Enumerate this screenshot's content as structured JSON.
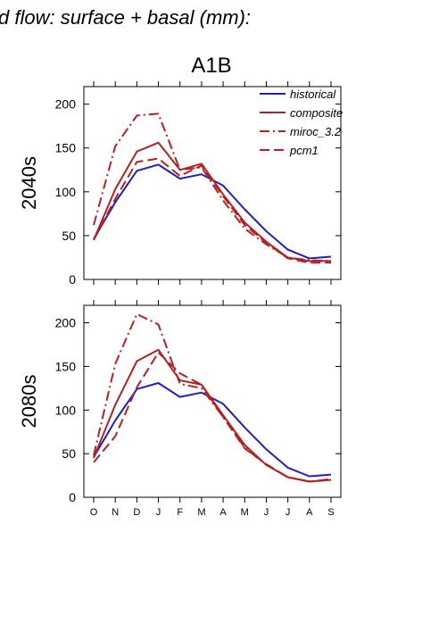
{
  "page_header": "d flow: surface + basal (mm):",
  "chart_data": {
    "type": "line",
    "title": "A1B",
    "categories": [
      "O",
      "N",
      "D",
      "J",
      "F",
      "M",
      "A",
      "M",
      "J",
      "J",
      "A",
      "S"
    ],
    "ylim": [
      0,
      220
    ],
    "yticks": [
      0,
      50,
      100,
      150,
      200
    ],
    "grid": false,
    "legend_position": "top-right",
    "legend": [
      {
        "name": "historical",
        "color": "#1f1fbf",
        "dash": "solid"
      },
      {
        "name": "composite",
        "color": "#b22222",
        "dash": "solid"
      },
      {
        "name": "miroc_3.2",
        "color": "#b22222",
        "dash": "dashdot"
      },
      {
        "name": "pcm1",
        "color": "#b22222",
        "dash": "dashed"
      }
    ],
    "panels": [
      {
        "label": "2040s",
        "series": [
          {
            "name": "historical",
            "values": [
              46,
              88,
              124,
              131,
              115,
              120,
              107,
              80,
              55,
              34,
              24,
              26
            ]
          },
          {
            "name": "composite",
            "values": [
              45,
              103,
              146,
              156,
              125,
              132,
              97,
              65,
              43,
              25,
              21,
              21
            ]
          },
          {
            "name": "miroc_3.2",
            "values": [
              62,
              152,
              187,
              189,
              125,
              128,
              90,
              58,
              40,
              25,
              22,
              21
            ]
          },
          {
            "name": "pcm1",
            "values": [
              45,
              92,
              134,
              138,
              118,
              130,
              95,
              62,
              42,
              24,
              19,
              19
            ]
          }
        ]
      },
      {
        "label": "2080s",
        "series": [
          {
            "name": "historical",
            "values": [
              46,
              88,
              124,
              131,
              115,
              120,
              107,
              80,
              55,
              34,
              24,
              26
            ]
          },
          {
            "name": "composite",
            "values": [
              45,
              106,
              156,
              169,
              134,
              129,
              94,
              60,
              37,
              23,
              18,
              20
            ]
          },
          {
            "name": "miroc_3.2",
            "values": [
              48,
              153,
              210,
              198,
              130,
              125,
              92,
              57,
              37,
              23,
              18,
              20
            ]
          },
          {
            "name": "pcm1",
            "values": [
              40,
              70,
              126,
              166,
              142,
              129,
              92,
              56,
              38,
              23,
              18,
              21
            ]
          }
        ]
      }
    ]
  }
}
